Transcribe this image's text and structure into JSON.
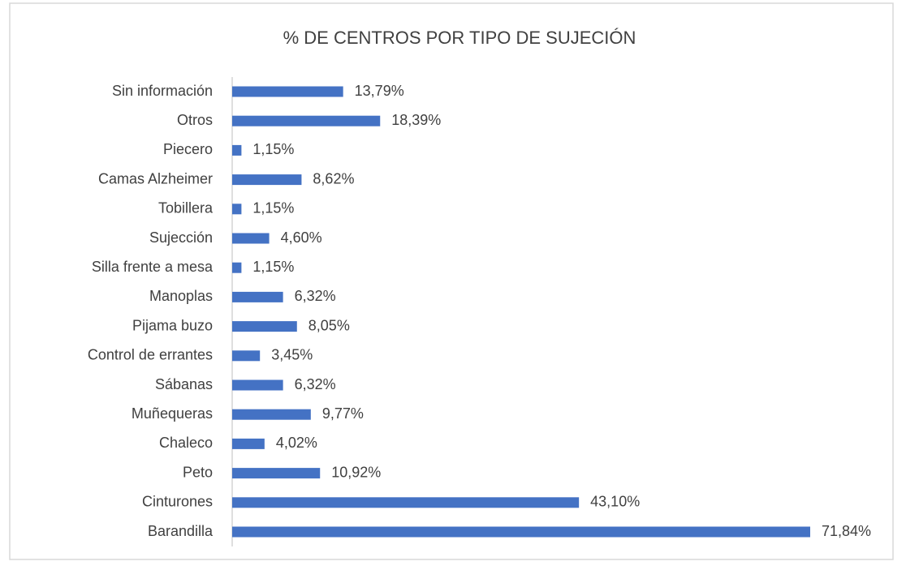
{
  "chart_data": {
    "type": "bar",
    "orientation": "horizontal",
    "title": "% DE CENTROS POR TIPO DE SUJECIÓN",
    "categories": [
      "Sin información",
      "Otros",
      "Piecero",
      "Camas Alzheimer",
      "Tobillera",
      "Sujección",
      "Silla frente a mesa",
      "Manoplas",
      "Pijama buzo",
      "Control de errantes",
      "Sábanas",
      "Muñequeras",
      "Chaleco",
      "Peto",
      "Cinturones",
      "Barandilla"
    ],
    "values": [
      13.79,
      18.39,
      1.15,
      8.62,
      1.15,
      4.6,
      1.15,
      6.32,
      8.05,
      3.45,
      6.32,
      9.77,
      4.02,
      10.92,
      43.1,
      71.84
    ],
    "value_labels": [
      "13,79%",
      "18,39%",
      "1,15%",
      "8,62%",
      "1,15%",
      "4,60%",
      "1,15%",
      "6,32%",
      "8,05%",
      "3,45%",
      "6,32%",
      "9,77%",
      "4,02%",
      "10,92%",
      "43,10%",
      "71,84%"
    ],
    "color": "#4472c4"
  }
}
